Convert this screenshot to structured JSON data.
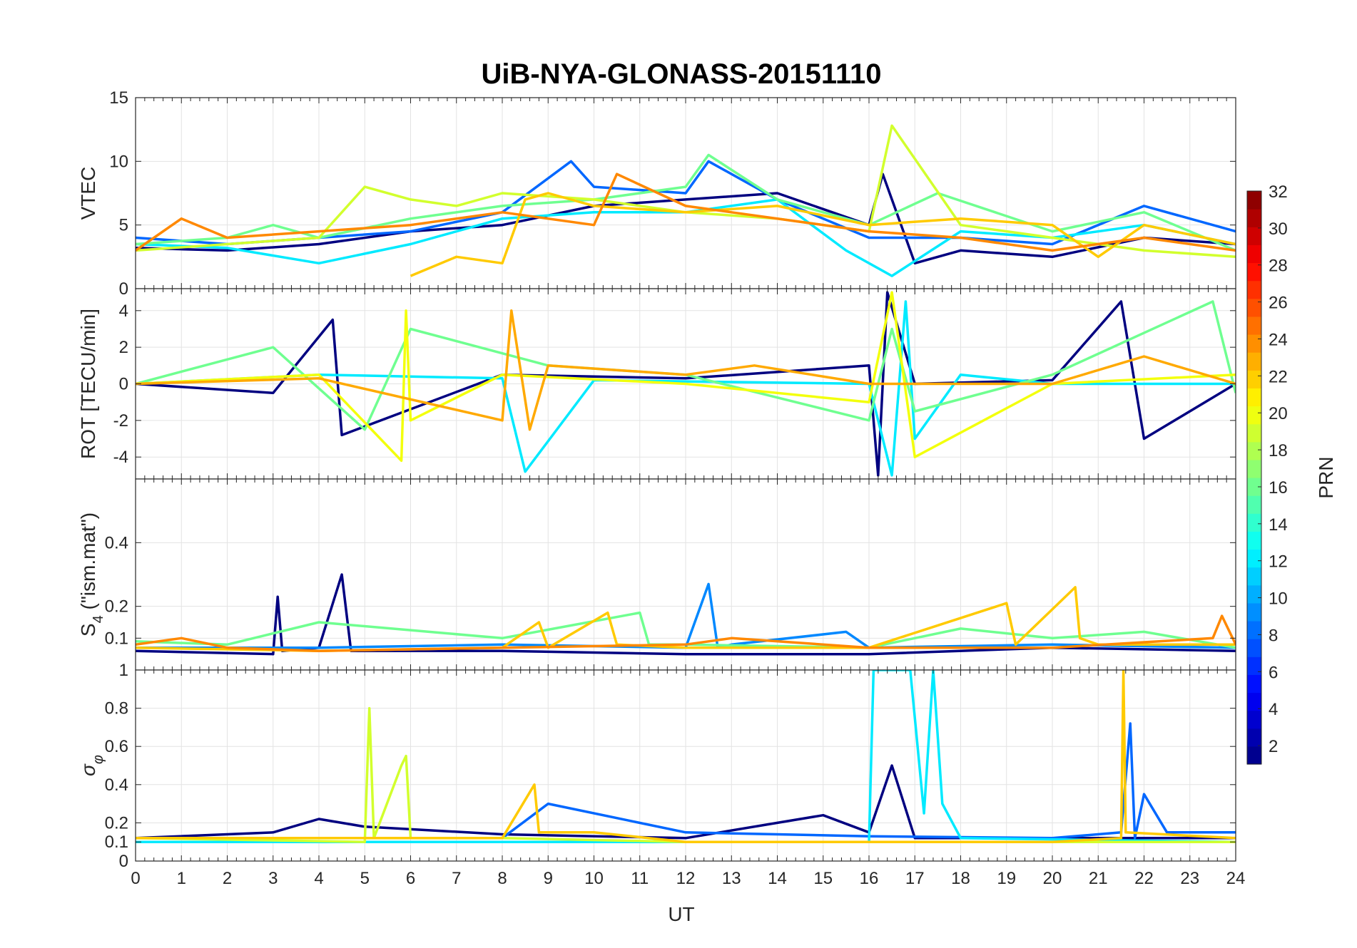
{
  "chart_data": {
    "type": "line",
    "title": "UiB-NYA-GLONASS-20151110",
    "xlabel": "UT",
    "xlim": [
      0,
      24
    ],
    "x_ticks": [
      "0",
      "1",
      "2",
      "3",
      "4",
      "5",
      "6",
      "7",
      "8",
      "9",
      "10",
      "11",
      "12",
      "13",
      "14",
      "15",
      "16",
      "17",
      "18",
      "19",
      "20",
      "21",
      "22",
      "23",
      "24"
    ],
    "grid": true,
    "panels": [
      {
        "id": "vtec",
        "ylabel": "VTEC",
        "ylim": [
          0,
          15
        ],
        "y_ticks": [
          "0",
          "5",
          "10",
          "15"
        ],
        "y_tick_values": [
          0,
          5,
          10,
          15
        ],
        "description_series": [
          {
            "name": "PRN 1",
            "x": [
              0,
              2,
              4,
              6,
              8,
              10,
              12,
              14,
              16,
              16.3,
              17,
              18,
              20,
              22,
              24
            ],
            "y": [
              3.2,
              3.0,
              3.5,
              4.5,
              5.0,
              6.5,
              7.0,
              7.5,
              5.0,
              9.0,
              2.0,
              3.0,
              2.5,
              4.0,
              3.5
            ]
          },
          {
            "name": "PRN 8",
            "x": [
              0,
              2,
              4,
              6,
              8,
              9.5,
              10,
              12,
              12.5,
              14,
              16,
              18,
              20,
              22,
              24
            ],
            "y": [
              4.0,
              3.5,
              4.0,
              4.5,
              6.0,
              10.0,
              8.0,
              7.5,
              10.0,
              7.0,
              4.0,
              4.0,
              3.5,
              6.5,
              4.5
            ]
          },
          {
            "name": "PRN 12",
            "x": [
              0,
              2,
              4,
              6,
              8,
              10,
              12,
              14,
              15.5,
              16.5,
              18,
              20,
              22,
              24
            ],
            "y": [
              3.5,
              3.2,
              2.0,
              3.5,
              5.5,
              6.0,
              6.0,
              7.0,
              3.0,
              1.0,
              4.5,
              4.0,
              5.0,
              3.5
            ]
          },
          {
            "name": "PRN 16",
            "x": [
              0,
              2,
              3,
              4,
              6,
              8,
              10,
              12,
              12.5,
              14,
              16,
              17.5,
              20,
              22,
              24
            ],
            "y": [
              3.5,
              4.0,
              5.0,
              4.0,
              5.5,
              6.5,
              7.0,
              8.0,
              10.5,
              7.0,
              5.0,
              7.5,
              4.5,
              6.0,
              3.0
            ]
          },
          {
            "name": "PRN 19",
            "x": [
              0,
              2,
              4,
              5,
              6,
              7,
              8,
              10,
              12,
              14,
              16,
              16.5,
              18,
              20,
              22,
              24
            ],
            "y": [
              3.0,
              3.5,
              4.0,
              8.0,
              7.0,
              6.5,
              7.5,
              7.0,
              6.0,
              5.5,
              4.5,
              12.8,
              5.0,
              4.0,
              3.0,
              2.5
            ]
          },
          {
            "name": "PRN 22",
            "x": [
              6,
              7,
              8,
              8.5,
              9,
              10,
              12,
              14,
              16,
              18,
              20,
              21,
              22,
              24
            ],
            "y": [
              1.0,
              2.5,
              2.0,
              7.0,
              7.5,
              6.5,
              6.0,
              6.5,
              5.0,
              5.5,
              5.0,
              2.5,
              5.0,
              3.5
            ]
          },
          {
            "name": "PRN 24",
            "x": [
              0,
              1,
              2,
              4,
              6,
              8,
              10,
              10.5,
              12,
              13,
              16,
              18,
              20,
              22,
              24
            ],
            "y": [
              3.0,
              5.5,
              4.0,
              4.5,
              5.0,
              6.0,
              5.0,
              9.0,
              6.5,
              6.0,
              4.5,
              4.0,
              3.0,
              4.0,
              3.0
            ]
          }
        ]
      },
      {
        "id": "rot",
        "ylabel": "ROT [TECU/min]",
        "ylim": [
          -5.2,
          5.2
        ],
        "y_ticks": [
          "-4",
          "-2",
          "0",
          "2",
          "4"
        ],
        "y_tick_values": [
          -4,
          -2,
          0,
          2,
          4
        ],
        "description_series": [
          {
            "name": "PRN 1",
            "x": [
              0,
              3,
              4.3,
              4.5,
              8,
              12,
              16,
              16.2,
              16.4,
              17,
              20,
              21.5,
              22,
              24
            ],
            "y": [
              0.0,
              -0.5,
              3.5,
              -2.8,
              0.5,
              0.3,
              1.0,
              -5.0,
              5.0,
              0.0,
              0.2,
              4.5,
              -3.0,
              0.0
            ]
          },
          {
            "name": "PRN 12",
            "x": [
              0,
              4,
              8,
              8.5,
              10,
              16,
              16.5,
              16.8,
              17,
              18,
              20,
              24
            ],
            "y": [
              0.0,
              0.5,
              0.3,
              -4.8,
              0.2,
              0.0,
              -5.0,
              4.5,
              -3.0,
              0.5,
              0.0,
              0.0
            ]
          },
          {
            "name": "PRN 16",
            "x": [
              0,
              3,
              5,
              6,
              9,
              12,
              16,
              16.5,
              17,
              20,
              23.5,
              24
            ],
            "y": [
              0.0,
              2.0,
              -2.5,
              3.0,
              1.0,
              0.5,
              -2.0,
              3.0,
              -1.5,
              0.5,
              4.5,
              -0.5
            ]
          },
          {
            "name": "PRN 20",
            "x": [
              0,
              4,
              5.8,
              5.9,
              6,
              8,
              12,
              16,
              16.5,
              17,
              20,
              24
            ],
            "y": [
              0.0,
              0.5,
              -4.2,
              4.0,
              -2.0,
              0.5,
              0.0,
              -1.0,
              5.0,
              -4.0,
              0.0,
              0.5
            ]
          },
          {
            "name": "PRN 23",
            "x": [
              0,
              4,
              8,
              8.2,
              8.6,
              9,
              12,
              13.5,
              16,
              20,
              22,
              24
            ],
            "y": [
              0.0,
              0.3,
              -2.0,
              4.0,
              -2.5,
              1.0,
              0.5,
              1.0,
              0.0,
              0.0,
              1.5,
              0.0
            ]
          }
        ]
      },
      {
        "id": "s4",
        "ylabel": "S4 (\"ism.mat\")",
        "ylim": [
          0,
          0.6
        ],
        "y_ticks": [
          "0.1",
          "0.2",
          "0.4"
        ],
        "y_tick_values": [
          0.1,
          0.2,
          0.4
        ],
        "description_series": [
          {
            "name": "PRN 1",
            "x": [
              0,
              3,
              3.1,
              3.2,
              4,
              4.5,
              4.7,
              5,
              8,
              12,
              16,
              20,
              24
            ],
            "y": [
              0.06,
              0.05,
              0.23,
              0.06,
              0.07,
              0.3,
              0.06,
              0.06,
              0.06,
              0.05,
              0.05,
              0.07,
              0.06
            ]
          },
          {
            "name": "PRN 9",
            "x": [
              0,
              4,
              8,
              12,
              12.5,
              12.7,
              13,
              15.5,
              16,
              20,
              24
            ],
            "y": [
              0.07,
              0.07,
              0.08,
              0.07,
              0.27,
              0.07,
              0.08,
              0.12,
              0.07,
              0.08,
              0.07
            ]
          },
          {
            "name": "PRN 16",
            "x": [
              0,
              2,
              4,
              8,
              11,
              11.2,
              12,
              16,
              18,
              20,
              22,
              24
            ],
            "y": [
              0.09,
              0.08,
              0.15,
              0.1,
              0.18,
              0.08,
              0.08,
              0.07,
              0.13,
              0.1,
              0.12,
              0.07
            ]
          },
          {
            "name": "PRN 22",
            "x": [
              0,
              4,
              8,
              8.8,
              9,
              10.3,
              10.5,
              12,
              16,
              19,
              19.2,
              20.5,
              20.6,
              21,
              24
            ],
            "y": [
              0.07,
              0.06,
              0.07,
              0.15,
              0.07,
              0.18,
              0.08,
              0.07,
              0.07,
              0.21,
              0.08,
              0.26,
              0.1,
              0.08,
              0.08
            ]
          },
          {
            "name": "PRN 24",
            "x": [
              0,
              1,
              2,
              4,
              8,
              12,
              13,
              16,
              20,
              23.5,
              23.7,
              24
            ],
            "y": [
              0.08,
              0.1,
              0.07,
              0.06,
              0.07,
              0.08,
              0.1,
              0.07,
              0.07,
              0.1,
              0.17,
              0.08
            ]
          }
        ]
      },
      {
        "id": "sigma_phi",
        "ylabel": "σφ",
        "ylim": [
          0,
          1
        ],
        "y_ticks": [
          "0",
          "0.1",
          "0.2",
          "0.4",
          "0.6",
          "0.8",
          "1"
        ],
        "y_tick_values": [
          0,
          0.1,
          0.2,
          0.4,
          0.6,
          0.8,
          1
        ],
        "description_series": [
          {
            "name": "PRN 1",
            "x": [
              0,
              3,
              4,
              5,
              8,
              12,
              14,
              15,
              16,
              16.5,
              17,
              20,
              24
            ],
            "y": [
              0.12,
              0.15,
              0.22,
              0.18,
              0.14,
              0.12,
              0.2,
              0.24,
              0.15,
              0.5,
              0.12,
              0.12,
              0.12
            ]
          },
          {
            "name": "PRN 8",
            "x": [
              0,
              8,
              9,
              12,
              16,
              20,
              21.5,
              21.7,
              21.8,
              22,
              22.5,
              24
            ],
            "y": [
              0.12,
              0.12,
              0.3,
              0.15,
              0.13,
              0.12,
              0.15,
              0.72,
              0.12,
              0.35,
              0.15,
              0.15
            ]
          },
          {
            "name": "PRN 12",
            "x": [
              0,
              8,
              12,
              16,
              16.1,
              16.3,
              16.5,
              16.7,
              16.9,
              17.2,
              17.4,
              17.6,
              18,
              24
            ],
            "y": [
              0.1,
              0.1,
              0.1,
              0.1,
              1.0,
              1.0,
              1.0,
              1.0,
              1.0,
              0.25,
              1.0,
              0.3,
              0.12,
              0.1
            ]
          },
          {
            "name": "PRN 19",
            "x": [
              0,
              5,
              5.1,
              5.2,
              5.8,
              5.9,
              6,
              8,
              12,
              16,
              20,
              24
            ],
            "y": [
              0.12,
              0.1,
              0.8,
              0.12,
              0.5,
              0.55,
              0.12,
              0.12,
              0.1,
              0.1,
              0.1,
              0.1
            ]
          },
          {
            "name": "PRN 22",
            "x": [
              0,
              8,
              8.7,
              8.8,
              10,
              12,
              16,
              20,
              21.5,
              21.55,
              21.6,
              24
            ],
            "y": [
              0.12,
              0.12,
              0.4,
              0.15,
              0.15,
              0.1,
              0.1,
              0.1,
              0.12,
              1.0,
              0.15,
              0.12
            ]
          }
        ]
      }
    ],
    "colorbar": {
      "label": "PRN",
      "range": [
        1,
        32
      ],
      "ticks": [
        "2",
        "4",
        "6",
        "8",
        "10",
        "12",
        "14",
        "16",
        "18",
        "20",
        "22",
        "24",
        "26",
        "28",
        "30",
        "32"
      ],
      "tick_values": [
        2,
        4,
        6,
        8,
        10,
        12,
        14,
        16,
        18,
        20,
        22,
        24,
        26,
        28,
        30,
        32
      ],
      "colormap": "jet",
      "levels": 32
    }
  }
}
